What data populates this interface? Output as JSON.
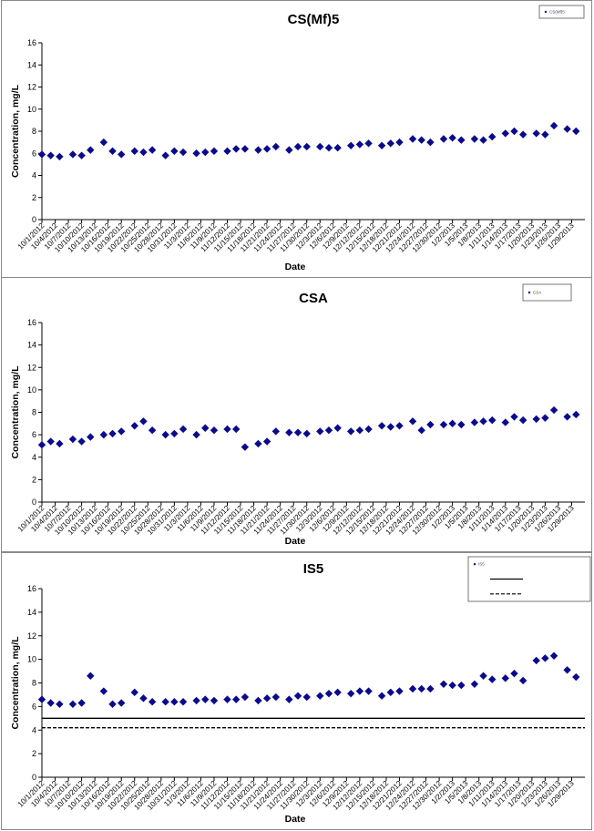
{
  "chart_data": [
    {
      "type": "scatter",
      "title": "CS(Mf)5",
      "xlabel": "Date",
      "ylabel": "Concentration, mg/L",
      "ylim": [
        0,
        16
      ],
      "yticks": [
        0,
        2,
        4,
        6,
        8,
        10,
        12,
        14,
        16
      ],
      "xlim": [
        "2012-10-01",
        "2013-02-01"
      ],
      "xticks": [
        "10/1/2012",
        "10/4/2012",
        "10/7/2012",
        "10/10/2012",
        "10/13/2012",
        "10/16/2012",
        "10/19/2012",
        "10/22/2012",
        "10/25/2012",
        "10/28/2012",
        "10/31/2012",
        "11/3/2012",
        "11/6/2012",
        "11/9/2012",
        "11/12/2012",
        "11/15/2012",
        "11/18/2012",
        "11/21/2012",
        "11/24/2012",
        "11/27/2012",
        "11/30/2012",
        "12/3/2012",
        "12/6/2012",
        "12/9/2012",
        "12/12/2012",
        "12/15/2012",
        "12/18/2012",
        "12/21/2012",
        "12/24/2012",
        "12/27/2012",
        "12/30/2012",
        "1/2/2013",
        "1/5/2013",
        "1/8/2013",
        "1/11/2013",
        "1/14/2013",
        "1/17/2013",
        "1/20/2013",
        "1/23/2013",
        "1/26/2013",
        "1/29/2013"
      ],
      "grid": false,
      "legend": {
        "position": "top-right",
        "entries": [
          {
            "name": "CS(Mf)5",
            "marker": "diamond"
          }
        ]
      },
      "series": [
        {
          "name": "CS(Mf)5",
          "color": "#0a0a8c",
          "marker": "diamond",
          "x": [
            "2012-10-01",
            "2012-10-03",
            "2012-10-05",
            "2012-10-08",
            "2012-10-10",
            "2012-10-12",
            "2012-10-15",
            "2012-10-17",
            "2012-10-19",
            "2012-10-22",
            "2012-10-24",
            "2012-10-26",
            "2012-10-29",
            "2012-10-31",
            "2012-11-02",
            "2012-11-05",
            "2012-11-07",
            "2012-11-09",
            "2012-11-12",
            "2012-11-14",
            "2012-11-16",
            "2012-11-19",
            "2012-11-21",
            "2012-11-23",
            "2012-11-26",
            "2012-11-28",
            "2012-11-30",
            "2012-12-03",
            "2012-12-05",
            "2012-12-07",
            "2012-12-10",
            "2012-12-12",
            "2012-12-14",
            "2012-12-17",
            "2012-12-19",
            "2012-12-21",
            "2012-12-24",
            "2012-12-26",
            "2012-12-28",
            "2012-12-31",
            "2013-01-02",
            "2013-01-04",
            "2013-01-07",
            "2013-01-09",
            "2013-01-11",
            "2013-01-14",
            "2013-01-16",
            "2013-01-18",
            "2013-01-21",
            "2013-01-23",
            "2013-01-25",
            "2013-01-28",
            "2013-01-30"
          ],
          "y": [
            5.9,
            5.8,
            5.7,
            5.9,
            5.8,
            6.3,
            7.0,
            6.2,
            5.9,
            6.2,
            6.1,
            6.3,
            5.8,
            6.2,
            6.1,
            6.0,
            6.1,
            6.2,
            6.2,
            6.4,
            6.4,
            6.3,
            6.4,
            6.6,
            6.3,
            6.6,
            6.6,
            6.6,
            6.5,
            6.5,
            6.7,
            6.8,
            6.9,
            6.7,
            6.9,
            7.0,
            7.3,
            7.2,
            7.0,
            7.3,
            7.4,
            7.2,
            7.3,
            7.2,
            7.5,
            7.8,
            8.0,
            7.7,
            7.8,
            7.7,
            8.5,
            8.2,
            8.0
          ]
        }
      ]
    },
    {
      "type": "scatter",
      "title": "CSA",
      "xlabel": "Date",
      "ylabel": "Concentration, mg/L",
      "ylim": [
        0,
        16
      ],
      "yticks": [
        0,
        2,
        4,
        6,
        8,
        10,
        12,
        14,
        16
      ],
      "xlim": [
        "2012-10-01",
        "2013-02-01"
      ],
      "xticks": [
        "10/1/2012",
        "10/4/2012",
        "10/7/2012",
        "10/10/2012",
        "10/13/2012",
        "10/16/2012",
        "10/19/2012",
        "10/22/2012",
        "10/25/2012",
        "10/28/2012",
        "10/31/2012",
        "11/3/2012",
        "11/6/2012",
        "11/9/2012",
        "11/12/2012",
        "11/15/2012",
        "11/18/2012",
        "11/21/2012",
        "11/24/2012",
        "11/27/2012",
        "11/30/2012",
        "12/3/2012",
        "12/6/2012",
        "12/9/2012",
        "12/12/2012",
        "12/15/2012",
        "12/18/2012",
        "12/21/2012",
        "12/24/2012",
        "12/27/2012",
        "12/30/2012",
        "1/2/2013",
        "1/5/2013",
        "1/8/2013",
        "1/11/2013",
        "1/14/2013",
        "1/17/2013",
        "1/20/2013",
        "1/23/2013",
        "1/26/2013",
        "1/29/2013"
      ],
      "grid": false,
      "legend": {
        "position": "top-right",
        "entries": [
          {
            "name": "CSA",
            "marker": "diamond"
          }
        ]
      },
      "series": [
        {
          "name": "CSA",
          "color": "#0a0a8c",
          "marker": "diamond",
          "x": [
            "2012-10-01",
            "2012-10-03",
            "2012-10-05",
            "2012-10-08",
            "2012-10-10",
            "2012-10-12",
            "2012-10-15",
            "2012-10-17",
            "2012-10-19",
            "2012-10-22",
            "2012-10-24",
            "2012-10-26",
            "2012-10-29",
            "2012-10-31",
            "2012-11-02",
            "2012-11-05",
            "2012-11-07",
            "2012-11-09",
            "2012-11-12",
            "2012-11-14",
            "2012-11-16",
            "2012-11-19",
            "2012-11-21",
            "2012-11-23",
            "2012-11-26",
            "2012-11-28",
            "2012-11-30",
            "2012-12-03",
            "2012-12-05",
            "2012-12-07",
            "2012-12-10",
            "2012-12-12",
            "2012-12-14",
            "2012-12-17",
            "2012-12-19",
            "2012-12-21",
            "2012-12-24",
            "2012-12-26",
            "2012-12-28",
            "2012-12-31",
            "2013-01-02",
            "2013-01-04",
            "2013-01-07",
            "2013-01-09",
            "2013-01-11",
            "2013-01-14",
            "2013-01-16",
            "2013-01-18",
            "2013-01-21",
            "2013-01-23",
            "2013-01-25",
            "2013-01-28",
            "2013-01-30"
          ],
          "y": [
            5.1,
            5.4,
            5.2,
            5.6,
            5.4,
            5.8,
            6.0,
            6.1,
            6.3,
            6.8,
            7.2,
            6.4,
            6.0,
            6.1,
            6.5,
            6.0,
            6.6,
            6.4,
            6.5,
            6.5,
            4.9,
            5.2,
            5.4,
            6.3,
            6.2,
            6.2,
            6.1,
            6.3,
            6.4,
            6.6,
            6.3,
            6.4,
            6.5,
            6.8,
            6.7,
            6.8,
            7.2,
            6.4,
            6.9,
            6.9,
            7.0,
            6.9,
            7.1,
            7.2,
            7.3,
            7.1,
            7.6,
            7.3,
            7.4,
            7.5,
            8.2,
            7.6,
            7.8
          ]
        }
      ]
    },
    {
      "type": "scatter",
      "title": "IS5",
      "xlabel": "Date",
      "ylabel": "Concentration, mg/L",
      "ylim": [
        0,
        16
      ],
      "yticks": [
        0,
        2,
        4,
        6,
        8,
        10,
        12,
        14,
        16
      ],
      "xlim": [
        "2012-10-01",
        "2013-02-01"
      ],
      "xticks": [
        "10/1/2012",
        "10/4/2012",
        "10/7/2012",
        "10/10/2012",
        "10/13/2012",
        "10/16/2012",
        "10/19/2012",
        "10/22/2012",
        "10/25/2012",
        "10/28/2012",
        "10/31/2012",
        "11/3/2012",
        "11/6/2012",
        "11/9/2012",
        "11/12/2012",
        "11/15/2012",
        "11/18/2012",
        "11/21/2012",
        "11/24/2012",
        "11/27/2012",
        "11/30/2012",
        "12/3/2012",
        "12/6/2012",
        "12/9/2012",
        "12/12/2012",
        "12/15/2012",
        "12/18/2012",
        "12/21/2012",
        "12/24/2012",
        "12/27/2012",
        "12/30/2012",
        "1/2/2013",
        "1/5/2013",
        "1/8/2013",
        "1/11/2013",
        "1/14/2013",
        "1/17/2013",
        "1/20/2013",
        "1/23/2013",
        "1/26/2013",
        "1/29/2013"
      ],
      "grid": false,
      "legend": {
        "position": "top-right",
        "entries": [
          {
            "name": "IS5",
            "marker": "diamond"
          },
          {
            "name": "",
            "line": "solid"
          },
          {
            "name": "",
            "line": "dashed"
          }
        ]
      },
      "reference_lines": [
        {
          "y": 5.0,
          "style": "solid",
          "color": "#000000"
        },
        {
          "y": 4.2,
          "style": "dashed",
          "color": "#000000"
        }
      ],
      "series": [
        {
          "name": "IS5",
          "color": "#0a0a8c",
          "marker": "diamond",
          "x": [
            "2012-10-01",
            "2012-10-03",
            "2012-10-05",
            "2012-10-08",
            "2012-10-10",
            "2012-10-12",
            "2012-10-15",
            "2012-10-17",
            "2012-10-19",
            "2012-10-22",
            "2012-10-24",
            "2012-10-26",
            "2012-10-29",
            "2012-10-31",
            "2012-11-02",
            "2012-11-05",
            "2012-11-07",
            "2012-11-09",
            "2012-11-12",
            "2012-11-14",
            "2012-11-16",
            "2012-11-19",
            "2012-11-21",
            "2012-11-23",
            "2012-11-26",
            "2012-11-28",
            "2012-11-30",
            "2012-12-03",
            "2012-12-05",
            "2012-12-07",
            "2012-12-10",
            "2012-12-12",
            "2012-12-14",
            "2012-12-17",
            "2012-12-19",
            "2012-12-21",
            "2012-12-24",
            "2012-12-26",
            "2012-12-28",
            "2012-12-31",
            "2013-01-02",
            "2013-01-04",
            "2013-01-07",
            "2013-01-09",
            "2013-01-11",
            "2013-01-14",
            "2013-01-16",
            "2013-01-18",
            "2013-01-21",
            "2013-01-23",
            "2013-01-25",
            "2013-01-28",
            "2013-01-30"
          ],
          "y": [
            6.6,
            6.3,
            6.2,
            6.2,
            6.3,
            8.6,
            7.3,
            6.2,
            6.3,
            7.2,
            6.7,
            6.4,
            6.4,
            6.4,
            6.4,
            6.5,
            6.6,
            6.5,
            6.6,
            6.6,
            6.8,
            6.5,
            6.7,
            6.8,
            6.6,
            6.9,
            6.8,
            6.9,
            7.1,
            7.2,
            7.1,
            7.3,
            7.3,
            6.9,
            7.2,
            7.3,
            7.5,
            7.5,
            7.5,
            7.9,
            7.8,
            7.8,
            7.9,
            8.6,
            8.3,
            8.4,
            8.8,
            8.2,
            9.9,
            10.1,
            10.3,
            9.1,
            8.5
          ]
        }
      ]
    }
  ]
}
